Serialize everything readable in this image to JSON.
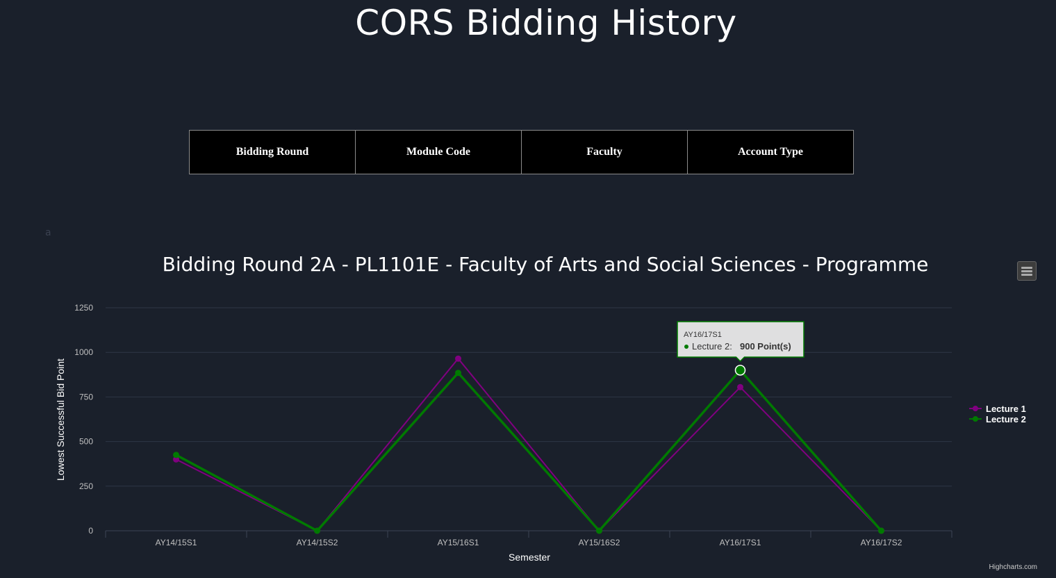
{
  "page": {
    "title": "CORS Bidding History",
    "stray_text": "a"
  },
  "filters": {
    "bidding_round": "Bidding Round",
    "module_code": "Module Code",
    "faculty": "Faculty",
    "account_type": "Account Type"
  },
  "chart_data": {
    "type": "line",
    "title": "Bidding Round 2A - PL1101E - Faculty of Arts and Social Sciences - Programme",
    "xlabel": "Semester",
    "ylabel": "Lowest Successful Bid Point",
    "categories": [
      "AY14/15S1",
      "AY14/15S2",
      "AY15/16S1",
      "AY15/16S2",
      "AY16/17S1",
      "AY16/17S2"
    ],
    "ylim": [
      0,
      1250
    ],
    "yticks": [
      0,
      250,
      500,
      750,
      1000,
      1250
    ],
    "grid": true,
    "legend_position": "right",
    "series": [
      {
        "name": "Lecture 1",
        "color": "#800080",
        "values": [
          400,
          0,
          965,
          0,
          805,
          0
        ]
      },
      {
        "name": "Lecture 2",
        "color": "#007a00",
        "values": [
          425,
          0,
          885,
          0,
          900,
          0
        ]
      }
    ],
    "tooltip": {
      "category": "AY16/17S1",
      "series_label": "Lecture 2:",
      "value_text": "900 Point(s)"
    }
  },
  "credits": "Highcharts.com"
}
